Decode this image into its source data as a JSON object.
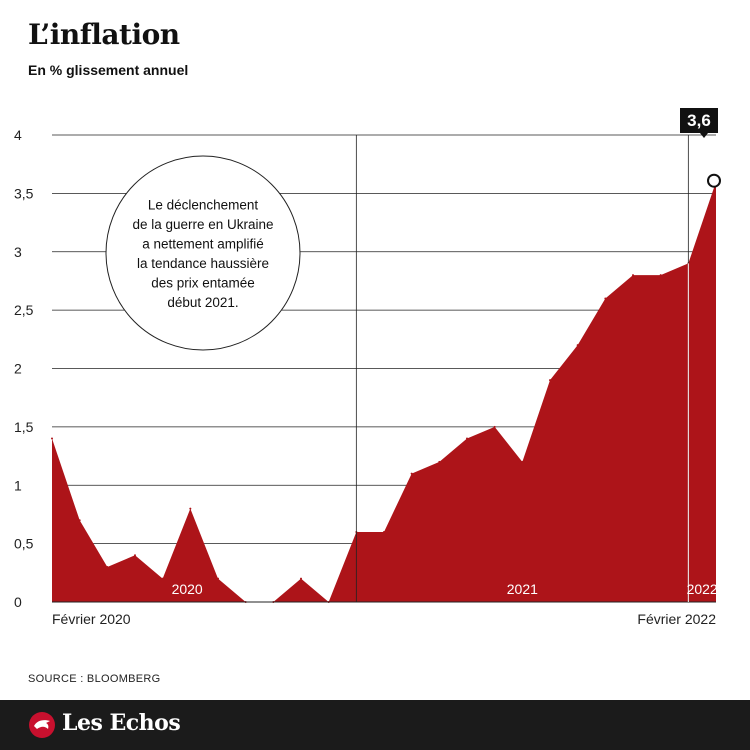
{
  "header": {
    "title": "L’inflation",
    "subtitle": "En % glissement annuel"
  },
  "source": "SOURCE : BLOOMBERG",
  "brand": {
    "name": "Les Echos",
    "mark_color": "#c8102e"
  },
  "chart_data": {
    "type": "area",
    "x": [
      "2020-02",
      "2020-03",
      "2020-04",
      "2020-05",
      "2020-06",
      "2020-07",
      "2020-08",
      "2020-09",
      "2020-10",
      "2020-11",
      "2020-12",
      "2021-01",
      "2021-02",
      "2021-03",
      "2021-04",
      "2021-05",
      "2021-06",
      "2021-07",
      "2021-08",
      "2021-09",
      "2021-10",
      "2021-11",
      "2021-12",
      "2022-01",
      "2022-02"
    ],
    "values": [
      1.4,
      0.7,
      0.3,
      0.4,
      0.2,
      0.8,
      0.2,
      0.0,
      0.0,
      0.2,
      0.0,
      0.6,
      0.6,
      1.1,
      1.2,
      1.4,
      1.5,
      1.2,
      1.9,
      2.2,
      2.6,
      2.8,
      2.8,
      2.9,
      3.6
    ],
    "ylim": [
      0,
      4
    ],
    "yticks": [
      {
        "value": 0,
        "label": "0"
      },
      {
        "value": 0.5,
        "label": "0,5"
      },
      {
        "value": 1,
        "label": "1"
      },
      {
        "value": 1.5,
        "label": "1,5"
      },
      {
        "value": 2,
        "label": "2"
      },
      {
        "value": 2.5,
        "label": "2,5"
      },
      {
        "value": 3,
        "label": "3"
      },
      {
        "value": 3.5,
        "label": "3,5"
      },
      {
        "value": 4,
        "label": "4"
      }
    ],
    "x_labels": [
      {
        "x": "2020-02",
        "label": "Février 2020"
      },
      {
        "x": "2022-02",
        "label": "Février 2022"
      }
    ],
    "year_separators": [
      "2021-01",
      "2022-01"
    ],
    "year_labels": [
      {
        "x": "2020-07",
        "label": "2020"
      },
      {
        "x": "2021-08",
        "label": "2021"
      },
      {
        "x": "2022-01",
        "label": "2022"
      }
    ],
    "grid": true,
    "fill_color": "#ad1419",
    "callout": {
      "x": "2022-02",
      "label": "3,6"
    },
    "annotation": [
      "Le déclenchement",
      "de la guerre en Ukraine",
      "a nettement amplifié",
      "la tendance haussière",
      "des prix entamée",
      "début 2021."
    ]
  }
}
